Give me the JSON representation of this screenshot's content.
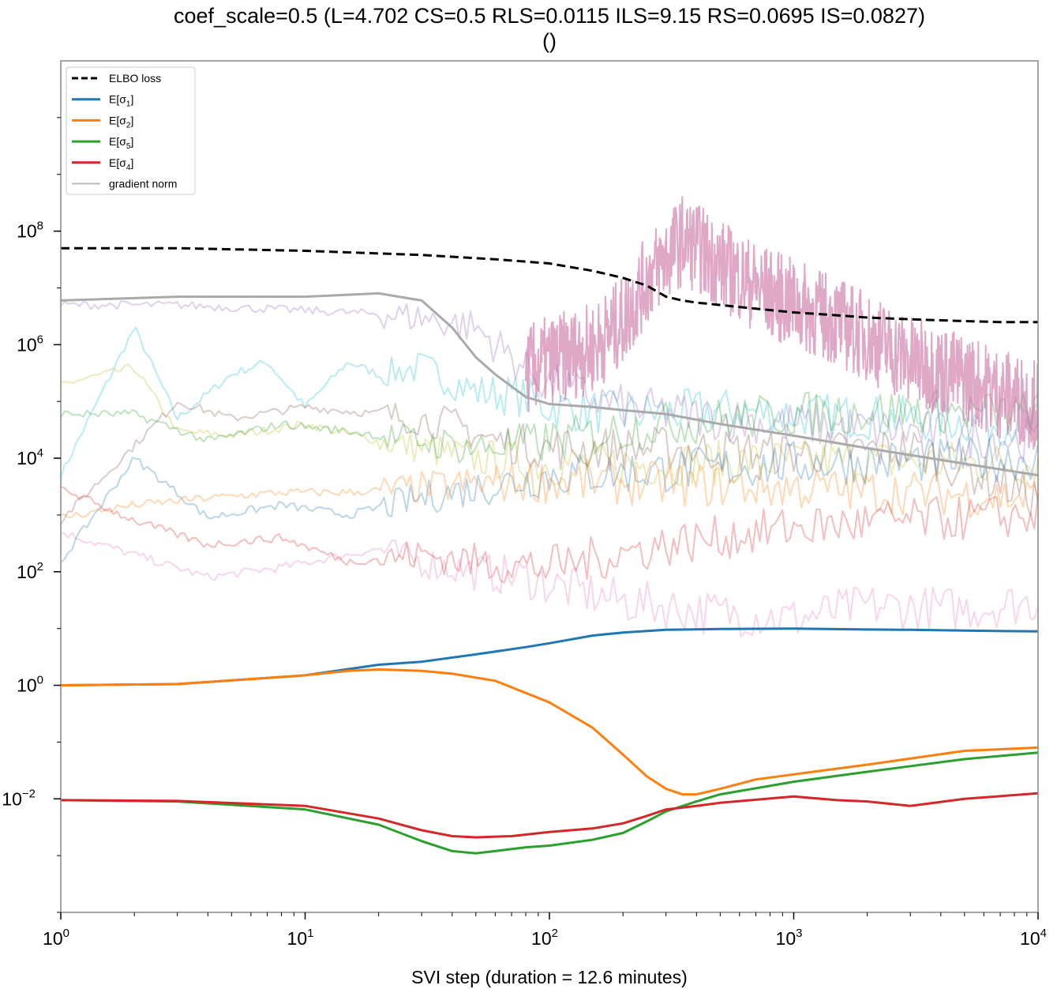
{
  "chart_data": {
    "type": "line",
    "title": "coef_scale=0.5 (L=4.702 CS=0.5 RLS=0.0115 ILS=9.15 RS=0.0695 IS=0.0827)",
    "subtitle": "()",
    "xlabel": "SVI step (duration = 12.6 minutes)",
    "ylabel": "",
    "xscale": "log",
    "yscale": "log",
    "xlim": [
      1,
      10000
    ],
    "ylim": [
      0.0001,
      100000000000
    ],
    "x_ticks": [
      {
        "value": 1,
        "base": "10",
        "exp": "0"
      },
      {
        "value": 10,
        "base": "10",
        "exp": "1"
      },
      {
        "value": 100,
        "base": "10",
        "exp": "2"
      },
      {
        "value": 1000,
        "base": "10",
        "exp": "3"
      },
      {
        "value": 10000,
        "base": "10",
        "exp": "4"
      }
    ],
    "y_ticks": [
      {
        "value": 0.01,
        "base": "10",
        "exp": "−2"
      },
      {
        "value": 1,
        "base": "10",
        "exp": "0"
      },
      {
        "value": 100,
        "base": "10",
        "exp": "2"
      },
      {
        "value": 10000,
        "base": "10",
        "exp": "4"
      },
      {
        "value": 1000000,
        "base": "10",
        "exp": "6"
      },
      {
        "value": 100000000,
        "base": "10",
        "exp": "8"
      }
    ],
    "grid": false,
    "legend_position": "top-left",
    "legend": [
      {
        "label": "ELBO loss",
        "color": "#000000",
        "style": "dashed"
      },
      {
        "label": "E[σ",
        "sub": "1",
        "suffix": "]",
        "color": "#1f77b4",
        "style": "solid"
      },
      {
        "label": "E[σ",
        "sub": "2",
        "suffix": "]",
        "color": "#ff7f0e",
        "style": "solid"
      },
      {
        "label": "E[σ",
        "sub": "5",
        "suffix": "]",
        "color": "#2ca02c",
        "style": "solid"
      },
      {
        "label": "E[σ",
        "sub": "4",
        "suffix": "]",
        "color": "#d62728",
        "style": "solid"
      },
      {
        "label": "gradient norm",
        "color": "#aaaaaa",
        "style": "solid"
      }
    ],
    "series": [
      {
        "name": "ELBO loss",
        "color": "#000000",
        "dash": true,
        "x": [
          1,
          3,
          10,
          30,
          60,
          100,
          150,
          200,
          250,
          300,
          350,
          400,
          500,
          700,
          1000,
          1500,
          2000,
          3000,
          5000,
          7000,
          10000
        ],
        "y": [
          50000000,
          50000000,
          45000000,
          38000000,
          32000000,
          27000000,
          20000000,
          15000000,
          11000000,
          7000000,
          6000000,
          5500000,
          5000000,
          4300000,
          3700000,
          3300000,
          3000000,
          2800000,
          2600000,
          2500000,
          2500000
        ]
      },
      {
        "name": "E[σ1]",
        "color": "#1f77b4",
        "x": [
          1,
          3,
          10,
          20,
          30,
          50,
          80,
          100,
          150,
          200,
          300,
          500,
          1000,
          2000,
          3000,
          5000,
          10000
        ],
        "y": [
          1.0,
          1.05,
          1.5,
          2.3,
          2.6,
          3.5,
          4.7,
          5.5,
          7.5,
          8.5,
          9.5,
          9.8,
          10.0,
          9.6,
          9.5,
          9.2,
          8.9
        ]
      },
      {
        "name": "E[σ2]",
        "color": "#ff7f0e",
        "x": [
          1,
          3,
          10,
          15,
          20,
          30,
          40,
          60,
          100,
          150,
          200,
          250,
          300,
          350,
          400,
          500,
          700,
          1000,
          2000,
          5000,
          10000
        ],
        "y": [
          1.0,
          1.05,
          1.5,
          1.8,
          1.9,
          1.8,
          1.6,
          1.2,
          0.5,
          0.18,
          0.06,
          0.025,
          0.015,
          0.012,
          0.012,
          0.015,
          0.022,
          0.027,
          0.04,
          0.07,
          0.08
        ]
      },
      {
        "name": "E[σ5]",
        "color": "#2ca02c",
        "x": [
          1,
          3,
          10,
          20,
          30,
          40,
          50,
          60,
          80,
          100,
          150,
          200,
          250,
          300,
          400,
          500,
          1000,
          2000,
          5000,
          10000
        ],
        "y": [
          0.0095,
          0.009,
          0.0065,
          0.0035,
          0.0018,
          0.0012,
          0.0011,
          0.0012,
          0.0014,
          0.0015,
          0.0019,
          0.0025,
          0.004,
          0.006,
          0.009,
          0.012,
          0.02,
          0.03,
          0.05,
          0.065
        ]
      },
      {
        "name": "E[σ4]",
        "color": "#d62728",
        "x": [
          1,
          3,
          10,
          20,
          30,
          40,
          50,
          70,
          100,
          150,
          200,
          250,
          300,
          400,
          500,
          1000,
          1500,
          2000,
          3000,
          5000,
          10000
        ],
        "y": [
          0.0095,
          0.0092,
          0.0075,
          0.0045,
          0.0028,
          0.0022,
          0.0021,
          0.0022,
          0.0026,
          0.003,
          0.0037,
          0.005,
          0.0065,
          0.0075,
          0.0085,
          0.011,
          0.0095,
          0.009,
          0.0075,
          0.01,
          0.0125
        ]
      },
      {
        "name": "gradient norm",
        "color": "#aaaaaa",
        "x": [
          1,
          3,
          10,
          20,
          30,
          40,
          50,
          60,
          80,
          100,
          150,
          200,
          300,
          500,
          1000,
          2000,
          5000,
          10000
        ],
        "y": [
          6000000,
          7000000,
          7000000,
          8000000,
          6000000,
          2000000,
          600000,
          300000,
          120000,
          90000,
          80000,
          70000,
          60000,
          40000,
          25000,
          15000,
          8000,
          5000
        ]
      },
      {
        "name": "",
        "color": "#17becf",
        "alpha": 0.3,
        "x": [
          1,
          2,
          3,
          5,
          7,
          10,
          15,
          20,
          30,
          50,
          80,
          100,
          200,
          500,
          1000,
          3000,
          10000
        ],
        "y": [
          5000,
          2000000,
          50000,
          300000,
          500000,
          80000,
          500000,
          300000,
          400000,
          150000,
          120000,
          80000,
          60000,
          70000,
          60000,
          50000,
          40000
        ]
      },
      {
        "name": "",
        "color": "#bcbd22",
        "alpha": 0.3,
        "x": [
          1,
          2,
          3,
          5,
          10,
          20,
          30,
          50,
          100,
          300,
          1000,
          10000
        ],
        "y": [
          200000,
          400000,
          30000,
          25000,
          40000,
          20000,
          15000,
          10000,
          8000,
          8000,
          9000,
          8000
        ]
      },
      {
        "name": "",
        "color": "#e377c2",
        "alpha": 0.3,
        "x": [
          1,
          2,
          4,
          8,
          15,
          20,
          30,
          50,
          80,
          100,
          150,
          200,
          300,
          400,
          600,
          1000,
          2000,
          5000,
          10000
        ],
        "y": [
          500,
          200,
          80,
          120,
          200,
          250,
          150,
          100,
          80,
          60,
          40,
          30,
          25,
          20,
          18,
          15,
          25,
          22,
          30
        ]
      },
      {
        "name": "",
        "color": "#8c564b",
        "alpha": 0.3,
        "x": [
          1,
          3,
          5,
          10,
          20,
          40,
          60,
          100,
          300,
          1000,
          3000,
          10000
        ],
        "y": [
          800,
          100000,
          50000,
          80000,
          60000,
          40000,
          20000,
          15000,
          15000,
          12000,
          15000,
          2000
        ]
      },
      {
        "name": "",
        "color": "#9467bd",
        "alpha": 0.3,
        "x": [
          1,
          3,
          10,
          20,
          30,
          50,
          70,
          100,
          200,
          500,
          1000,
          3000,
          10000
        ],
        "y": [
          5000000,
          5000000,
          4000000,
          3500000,
          3000000,
          2000000,
          600000,
          200000,
          80000,
          50000,
          40000,
          30000,
          20000
        ]
      },
      {
        "name": "",
        "color": "#1f77b4",
        "alpha": 0.3,
        "x": [
          1,
          2,
          4,
          8,
          15,
          30,
          50,
          100,
          300,
          1000,
          3000,
          10000
        ],
        "y": [
          150,
          10000,
          900,
          1500,
          1000,
          2000,
          3000,
          5000,
          6000,
          8000,
          9000,
          10000
        ]
      },
      {
        "name": "",
        "color": "#ff7f0e",
        "alpha": 0.3,
        "x": [
          1,
          2,
          4,
          8,
          15,
          30,
          50,
          100,
          300,
          1000,
          3000,
          10000
        ],
        "y": [
          900,
          1500,
          2000,
          2500,
          2500,
          3000,
          3500,
          4000,
          3500,
          3000,
          2500,
          2000
        ]
      },
      {
        "name": "",
        "color": "#2ca02c",
        "alpha": 0.3,
        "x": [
          1,
          2,
          4,
          8,
          15,
          30,
          50,
          100,
          300,
          1000,
          3000,
          10000
        ],
        "y": [
          60000,
          60000,
          20000,
          40000,
          30000,
          20000,
          15000,
          20000,
          40000,
          60000,
          70000,
          60000
        ]
      },
      {
        "name": "",
        "color": "#d62728",
        "alpha": 0.3,
        "x": [
          1,
          2,
          4,
          8,
          15,
          30,
          50,
          100,
          300,
          1000,
          3000,
          10000
        ],
        "y": [
          3000,
          800,
          300,
          400,
          150,
          200,
          150,
          120,
          300,
          600,
          800,
          1000
        ]
      },
      {
        "name": "",
        "color": "#cc79a7",
        "alpha": 0.65,
        "noise": true,
        "x": [
          80,
          100,
          150,
          200,
          250,
          300,
          350,
          400,
          500,
          700,
          1000,
          1500,
          2000,
          3000,
          5000,
          7000,
          10000
        ],
        "y": [
          200000,
          300000,
          500000,
          1500000,
          8000000,
          20000000,
          40000000,
          30000000,
          15000000,
          6000000,
          3000000,
          1500000,
          800000,
          300000,
          150000,
          80000,
          50000
        ]
      }
    ]
  }
}
